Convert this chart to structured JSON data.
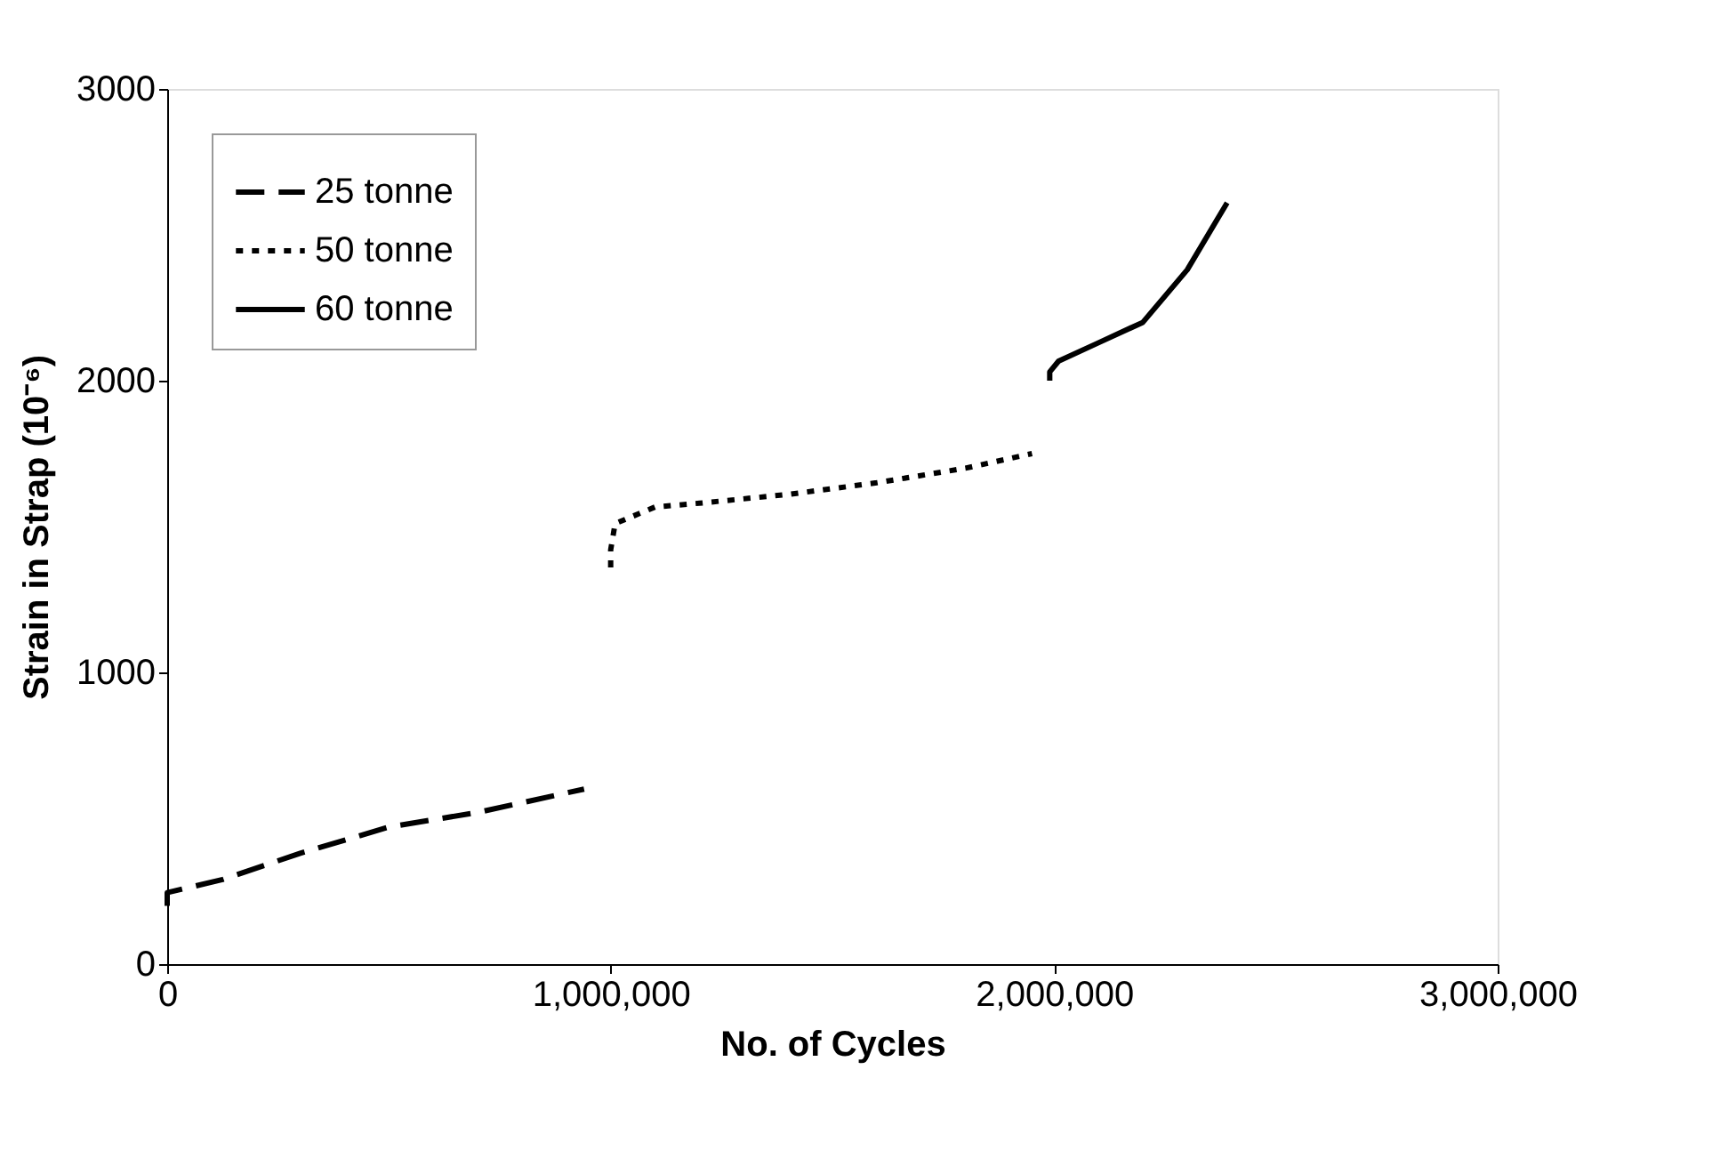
{
  "chart_data": {
    "type": "line",
    "xlabel": "No. of Cycles",
    "ylabel": "Strain in Strap (10⁻⁶)",
    "xlim": [
      0,
      3000000
    ],
    "xticks": [
      {
        "value": 0,
        "label": "0"
      },
      {
        "value": 1000000,
        "label": "1,000,000"
      },
      {
        "value": 2000000,
        "label": "2,000,000"
      },
      {
        "value": 3000000,
        "label": "3,000,000"
      }
    ],
    "ylim": [
      0,
      3000
    ],
    "yticks": [
      0,
      1000,
      2000,
      3000
    ],
    "grid": false,
    "legend": "top left",
    "marker": "none",
    "series": [
      {
        "name": "25 tonne",
        "color": "#000000",
        "line_style": "dashed",
        "x": [
          0,
          0,
          125000,
          300000,
          500000,
          700000,
          940000
        ],
        "values": [
          200,
          245,
          290,
          380,
          470,
          520,
          600
        ]
      },
      {
        "name": "50 tonne",
        "color": "#000000",
        "line_style": "dotted",
        "x": [
          1000000,
          1000000,
          1010000,
          1100000,
          1200000,
          1400000,
          1600000,
          1800000,
          1950000
        ],
        "values": [
          1360,
          1420,
          1510,
          1567,
          1580,
          1610,
          1650,
          1700,
          1750
        ]
      },
      {
        "name": "60 tonne",
        "color": "#000000",
        "line_style": "solid",
        "x": [
          1990000,
          1990000,
          2010000,
          2100000,
          2200000,
          2300000,
          2390000
        ],
        "values": [
          2000,
          2030,
          2067,
          2130,
          2200,
          2380,
          2610
        ]
      }
    ]
  }
}
